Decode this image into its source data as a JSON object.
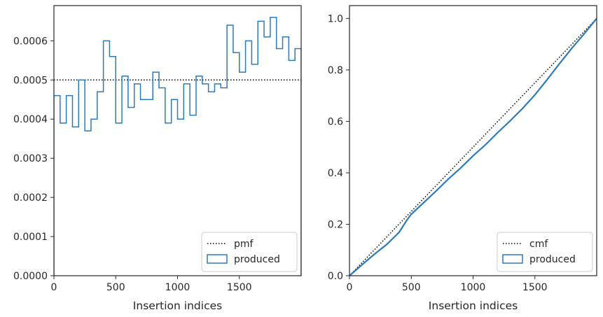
{
  "colors": {
    "series": "#2d7bb6",
    "reference": "#000000",
    "axis": "#262626"
  },
  "chart_data": [
    {
      "type": "line",
      "subtype": "step-histogram",
      "xlabel": "Insertion indices",
      "ylabel": "",
      "xlim": [
        0,
        2000
      ],
      "ylim": [
        0,
        0.00069
      ],
      "xticks": [
        0,
        500,
        1000,
        1500
      ],
      "xtick_labels": [
        "0",
        "500",
        "1000",
        "1500"
      ],
      "yticks": [
        0,
        0.0001,
        0.0002,
        0.0003,
        0.0004,
        0.0005,
        0.0006
      ],
      "ytick_labels": [
        "0.0000",
        "0.0001",
        "0.0002",
        "0.0003",
        "0.0004",
        "0.0005",
        "0.0006"
      ],
      "grid": false,
      "legend_position": "lower right",
      "legend": [
        {
          "label": "pmf",
          "style": "dotted-line"
        },
        {
          "label": "produced",
          "style": "outlined-box"
        }
      ],
      "reference_line": {
        "name": "pmf",
        "y": 0.0005
      },
      "bin_width": 50,
      "series": [
        {
          "name": "produced",
          "bin_edges": [
            0,
            50,
            100,
            150,
            200,
            250,
            300,
            350,
            400,
            450,
            500,
            550,
            600,
            650,
            700,
            750,
            800,
            850,
            900,
            950,
            1000,
            1050,
            1100,
            1150,
            1200,
            1250,
            1300,
            1350,
            1400,
            1450,
            1500,
            1550,
            1600,
            1650,
            1700,
            1750,
            1800,
            1850,
            1900,
            1950,
            2000
          ],
          "values": [
            0.00046,
            0.00039,
            0.00046,
            0.00038,
            0.0005,
            0.00037,
            0.0004,
            0.00047,
            0.0006,
            0.00056,
            0.00039,
            0.00051,
            0.00043,
            0.00049,
            0.00045,
            0.00045,
            0.00052,
            0.00048,
            0.00039,
            0.00045,
            0.0004,
            0.00049,
            0.00041,
            0.00051,
            0.00049,
            0.00047,
            0.00049,
            0.00048,
            0.00064,
            0.00057,
            0.00052,
            0.0006,
            0.00054,
            0.00065,
            0.00061,
            0.00066,
            0.00058,
            0.00061,
            0.00055,
            0.00058
          ]
        }
      ]
    },
    {
      "type": "line",
      "subtype": "step-cumulative",
      "xlabel": "Insertion indices",
      "ylabel": "",
      "xlim": [
        0,
        2000
      ],
      "ylim": [
        0,
        1.05
      ],
      "xticks": [
        0,
        500,
        1000,
        1500
      ],
      "xtick_labels": [
        "0",
        "500",
        "1000",
        "1500"
      ],
      "yticks": [
        0,
        0.2,
        0.4,
        0.6,
        0.8,
        1.0
      ],
      "ytick_labels": [
        "0.0",
        "0.2",
        "0.4",
        "0.6",
        "0.8",
        "1.0"
      ],
      "grid": false,
      "legend_position": "lower right",
      "legend": [
        {
          "label": "cmf",
          "style": "dotted-line"
        },
        {
          "label": "produced",
          "style": "outlined-box"
        }
      ],
      "reference_line": {
        "name": "cmf",
        "x": [
          0,
          2000
        ],
        "y": [
          0,
          1.0
        ]
      },
      "series": [
        {
          "name": "produced",
          "x": [
            0,
            100,
            200,
            300,
            400,
            470,
            500,
            600,
            700,
            800,
            900,
            1000,
            1100,
            1200,
            1300,
            1400,
            1500,
            1600,
            1700,
            1800,
            1900,
            2000
          ],
          "y": [
            0,
            0.042,
            0.083,
            0.121,
            0.168,
            0.22,
            0.239,
            0.284,
            0.329,
            0.376,
            0.419,
            0.466,
            0.509,
            0.557,
            0.602,
            0.65,
            0.703,
            0.763,
            0.825,
            0.885,
            0.941,
            1.0
          ]
        }
      ]
    }
  ]
}
